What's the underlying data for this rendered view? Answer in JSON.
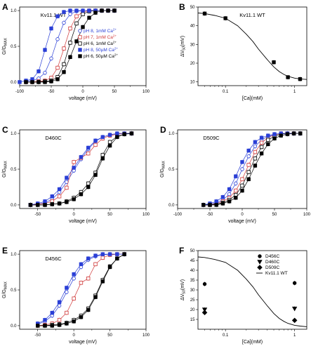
{
  "chart_data": [
    {
      "id": "A",
      "type": "scatter",
      "title": "Kv11.1 WT",
      "xlabel": "voltage (mV)",
      "ylabel": "G/G",
      "ylabel_sub": "MAX",
      "xlim": [
        -100,
        100
      ],
      "ylim": [
        -0.05,
        1.05
      ],
      "xticks": [
        -100,
        -50,
        0,
        50,
        100
      ],
      "yticks": [
        0.0,
        0.5,
        1.0
      ],
      "legend_position": "right",
      "series": [
        {
          "name": "pH 8, 1mM Ca",
          "sup": "2+",
          "color": "#2a3fd6",
          "marker": "circle",
          "filled": false,
          "x": [
            -90,
            -80,
            -70,
            -60,
            -50,
            -40,
            -30,
            -20,
            -10,
            0,
            10,
            20,
            30,
            40,
            50
          ],
          "y": [
            0.01,
            0.02,
            0.05,
            0.13,
            0.33,
            0.6,
            0.83,
            0.95,
            0.99,
            1.0,
            1.0,
            1.0,
            1.0,
            1.0,
            1.0
          ]
        },
        {
          "name": "pH 7, 1mM Ca",
          "sup": "2+",
          "color": "#d03a3a",
          "marker": "square",
          "filled": false,
          "x": [
            -90,
            -80,
            -70,
            -60,
            -50,
            -40,
            -30,
            -20,
            -10,
            0,
            10,
            20,
            30,
            40,
            50
          ],
          "y": [
            0.0,
            0.0,
            0.01,
            0.02,
            0.06,
            0.2,
            0.47,
            0.75,
            0.92,
            0.98,
            1.0,
            1.0,
            1.0,
            1.0,
            1.0
          ]
        },
        {
          "name": "pH 6, 1mM Ca",
          "sup": "2+",
          "color": "#000000",
          "marker": "square",
          "filled": false,
          "x": [
            -90,
            -80,
            -70,
            -60,
            -50,
            -40,
            -30,
            -20,
            -10,
            0,
            10,
            20,
            30,
            40,
            50
          ],
          "y": [
            0.0,
            0.0,
            0.0,
            0.01,
            0.02,
            0.07,
            0.25,
            0.55,
            0.82,
            0.95,
            0.99,
            1.0,
            1.0,
            1.0,
            1.0
          ]
        },
        {
          "name": "pH 8, 50µM Ca",
          "sup": "2+",
          "color": "#2a3fd6",
          "marker": "square",
          "filled": true,
          "x": [
            -100,
            -90,
            -80,
            -70,
            -60,
            -50,
            -40,
            -30,
            -20,
            -10,
            0,
            10,
            20,
            30,
            40,
            50
          ],
          "y": [
            0.0,
            0.02,
            0.04,
            0.15,
            0.45,
            0.75,
            0.92,
            0.98,
            1.0,
            1.0,
            1.0,
            1.0,
            1.0,
            1.0,
            1.0,
            1.0
          ]
        },
        {
          "name": "pH 6, 50µM Ca",
          "sup": "2+",
          "color": "#000000",
          "marker": "square",
          "filled": true,
          "x": [
            -90,
            -80,
            -70,
            -60,
            -50,
            -40,
            -30,
            -20,
            -10,
            0,
            10,
            20,
            30,
            40,
            50
          ],
          "y": [
            0.0,
            0.0,
            0.0,
            0.0,
            0.01,
            0.04,
            0.14,
            0.35,
            0.57,
            0.77,
            0.9,
            0.97,
            1.0,
            1.0,
            1.0
          ]
        }
      ]
    },
    {
      "id": "B",
      "type": "scatter",
      "title": "Kv11.1 WT",
      "xlabel": "[Ca](mM)",
      "ylabel": "ΔV",
      "ylabel_sub": "50",
      "ylabel_unit": "(mV)",
      "xscale": "log",
      "xlim": [
        0.04,
        1.5
      ],
      "ylim": [
        8,
        50
      ],
      "xticks": [
        0.1,
        1
      ],
      "xticklabels": [
        "0.1",
        "1"
      ],
      "yticks": [
        10,
        20,
        30,
        40,
        50
      ],
      "series": [
        {
          "name": "data",
          "color": "#000000",
          "marker": "square",
          "filled": true,
          "x": [
            0.05,
            0.1,
            0.5,
            0.8,
            1.2
          ],
          "y": [
            46.5,
            44,
            20.5,
            12.5,
            11.5
          ]
        },
        {
          "name": "fit",
          "color": "#000000",
          "marker": "line",
          "x": [
            0.04,
            0.05,
            0.07,
            0.1,
            0.15,
            0.2,
            0.25,
            0.3,
            0.4,
            0.5,
            0.6,
            0.7,
            0.8,
            1.0,
            1.2,
            1.5
          ],
          "y": [
            46.8,
            46.5,
            45.5,
            44.0,
            40.0,
            35.5,
            31.5,
            27.5,
            22.0,
            18.0,
            15.5,
            14.0,
            13.0,
            12.0,
            11.6,
            11.3
          ]
        }
      ]
    },
    {
      "id": "C",
      "type": "scatter",
      "title": "D460C",
      "xlabel": "voltage (mV)",
      "ylabel": "G/G",
      "ylabel_sub": "MAX",
      "xlim": [
        -75,
        100
      ],
      "ylim": [
        -0.05,
        1.05
      ],
      "xticks": [
        -50,
        0,
        50,
        100
      ],
      "yticks": [
        0.0,
        0.5,
        1.0
      ],
      "series": [
        {
          "name": "pH 8, 1mM",
          "color": "#2a3fd6",
          "marker": "circle",
          "filled": false,
          "x": [
            -60,
            -50,
            -40,
            -30,
            -20,
            -10,
            0,
            10,
            20,
            30,
            40,
            50,
            60,
            70,
            80
          ],
          "y": [
            0.0,
            0.01,
            0.03,
            0.08,
            0.18,
            0.32,
            0.48,
            0.64,
            0.78,
            0.89,
            0.95,
            0.98,
            1.0,
            1.0,
            1.0
          ]
        },
        {
          "name": "pH 7, 1mM",
          "color": "#d03a3a",
          "marker": "square",
          "filled": false,
          "x": [
            -60,
            -50,
            -40,
            -30,
            -20,
            -10,
            0,
            10,
            20,
            30,
            40,
            50,
            60,
            70,
            80
          ],
          "y": [
            0.0,
            0.01,
            0.02,
            0.05,
            0.12,
            0.24,
            0.6,
            0.66,
            0.72,
            0.84,
            0.93,
            0.97,
            0.99,
            1.0,
            1.0
          ]
        },
        {
          "name": "pH 6, 1mM",
          "color": "#000000",
          "marker": "square",
          "filled": false,
          "x": [
            -60,
            -50,
            -40,
            -30,
            -20,
            -10,
            0,
            10,
            20,
            30,
            40,
            50,
            60,
            70,
            80
          ],
          "y": [
            0.0,
            0.0,
            0.0,
            0.01,
            0.02,
            0.05,
            0.1,
            0.18,
            0.3,
            0.45,
            0.7,
            0.88,
            0.96,
            0.99,
            1.0
          ]
        },
        {
          "name": "pH 8, 50µM",
          "color": "#2a3fd6",
          "marker": "square",
          "filled": true,
          "x": [
            -60,
            -50,
            -40,
            -30,
            -20,
            -10,
            0,
            10,
            20,
            30,
            40,
            50,
            60,
            70,
            80
          ],
          "y": [
            0.0,
            0.02,
            0.05,
            0.12,
            0.22,
            0.38,
            0.52,
            0.67,
            0.8,
            0.9,
            0.95,
            0.98,
            1.0,
            1.0,
            1.0
          ]
        },
        {
          "name": "pH 6, 50µM",
          "color": "#000000",
          "marker": "square",
          "filled": true,
          "x": [
            -60,
            -50,
            -40,
            -30,
            -20,
            -10,
            0,
            10,
            20,
            30,
            40,
            50,
            60,
            70,
            80
          ],
          "y": [
            0.0,
            0.0,
            0.0,
            0.01,
            0.02,
            0.04,
            0.08,
            0.15,
            0.25,
            0.42,
            0.65,
            0.83,
            0.95,
            0.99,
            1.0
          ]
        }
      ]
    },
    {
      "id": "D",
      "type": "scatter",
      "title": "D509C",
      "xlabel": "voltage (mV)",
      "ylabel": "G/G",
      "ylabel_sub": "MAX",
      "xlim": [
        -100,
        100
      ],
      "ylim": [
        -0.05,
        1.05
      ],
      "xticks": [
        -100,
        -50,
        0,
        50,
        100
      ],
      "yticks": [
        0.0,
        0.5,
        1.0
      ],
      "series": [
        {
          "name": "pH 8, 1mM",
          "color": "#2a3fd6",
          "marker": "circle",
          "filled": false,
          "x": [
            -60,
            -50,
            -40,
            -30,
            -20,
            -10,
            0,
            10,
            20,
            30,
            40,
            50,
            60,
            70,
            80,
            90
          ],
          "y": [
            0.0,
            0.01,
            0.03,
            0.07,
            0.15,
            0.3,
            0.5,
            0.68,
            0.82,
            0.91,
            0.96,
            0.98,
            1.0,
            1.0,
            1.0,
            1.0
          ]
        },
        {
          "name": "pH 7, 1mM",
          "color": "#d03a3a",
          "marker": "square",
          "filled": false,
          "x": [
            -60,
            -50,
            -40,
            -30,
            -20,
            -10,
            0,
            10,
            20,
            30,
            40,
            50,
            60,
            70,
            80,
            90
          ],
          "y": [
            0.0,
            0.0,
            0.02,
            0.05,
            0.1,
            0.2,
            0.36,
            0.56,
            0.74,
            0.87,
            0.94,
            0.98,
            1.0,
            1.0,
            1.0,
            1.0
          ]
        },
        {
          "name": "pH 6, 1mM",
          "color": "#000000",
          "marker": "square",
          "filled": false,
          "x": [
            -60,
            -50,
            -40,
            -30,
            -20,
            -10,
            0,
            10,
            20,
            30,
            40,
            50,
            60,
            70,
            80,
            90
          ],
          "y": [
            0.0,
            0.0,
            0.01,
            0.03,
            0.07,
            0.14,
            0.27,
            0.46,
            0.65,
            0.81,
            0.91,
            0.96,
            0.99,
            1.0,
            1.0,
            1.0
          ]
        },
        {
          "name": "pH 8, 50µM",
          "color": "#2a3fd6",
          "marker": "square",
          "filled": true,
          "x": [
            -60,
            -50,
            -40,
            -30,
            -20,
            -10,
            0,
            10,
            20,
            30,
            40,
            50,
            60,
            70,
            80,
            90
          ],
          "y": [
            0.0,
            0.02,
            0.05,
            0.11,
            0.22,
            0.4,
            0.6,
            0.76,
            0.88,
            0.94,
            0.97,
            0.99,
            1.0,
            1.0,
            1.0,
            1.0
          ]
        },
        {
          "name": "pH 6, 50µM",
          "color": "#000000",
          "marker": "square",
          "filled": true,
          "x": [
            -60,
            -50,
            -40,
            -30,
            -20,
            -10,
            0,
            10,
            20,
            30,
            40,
            50,
            60,
            70,
            80,
            90
          ],
          "y": [
            0.0,
            0.0,
            0.0,
            0.02,
            0.05,
            0.1,
            0.2,
            0.36,
            0.55,
            0.72,
            0.85,
            0.93,
            0.97,
            0.99,
            1.0,
            1.0
          ]
        }
      ]
    },
    {
      "id": "E",
      "type": "scatter",
      "title": "D456C",
      "xlabel": "voltage (mV)",
      "ylabel": "G/G",
      "ylabel_sub": "MAX",
      "xlim": [
        -75,
        100
      ],
      "ylim": [
        -0.05,
        1.05
      ],
      "xticks": [
        -50,
        0,
        50,
        100
      ],
      "yticks": [
        0.0,
        0.5,
        1.0
      ],
      "series": [
        {
          "name": "pH 8, 1mM",
          "color": "#2a3fd6",
          "marker": "circle",
          "filled": false,
          "x": [
            -50,
            -40,
            -30,
            -20,
            -10,
            0,
            10,
            20,
            30,
            40,
            50,
            60,
            70
          ],
          "y": [
            0.02,
            0.06,
            0.14,
            0.28,
            0.47,
            0.66,
            0.82,
            0.92,
            0.97,
            0.99,
            1.0,
            1.0,
            1.0
          ]
        },
        {
          "name": "pH 7, 1mM",
          "color": "#d03a3a",
          "marker": "square",
          "filled": false,
          "x": [
            -50,
            -40,
            -30,
            -20,
            -10,
            0,
            10,
            20,
            30,
            40,
            50,
            60,
            70
          ],
          "y": [
            0.0,
            0.01,
            0.03,
            0.08,
            0.18,
            0.38,
            0.6,
            0.66,
            0.86,
            0.95,
            0.99,
            1.0,
            1.0
          ]
        },
        {
          "name": "pH 6, 1mM",
          "color": "#000000",
          "marker": "square",
          "filled": false,
          "x": [
            -50,
            -40,
            -30,
            -20,
            -10,
            0,
            10,
            20,
            30,
            40,
            50,
            60,
            70
          ],
          "y": [
            0.0,
            0.0,
            0.01,
            0.02,
            0.04,
            0.08,
            0.14,
            0.24,
            0.42,
            0.64,
            0.83,
            0.94,
            1.0
          ]
        },
        {
          "name": "pH 8, 50µM",
          "color": "#2a3fd6",
          "marker": "square",
          "filled": true,
          "x": [
            -50,
            -40,
            -30,
            -20,
            -10,
            0,
            10,
            20,
            30,
            40,
            50,
            60,
            70
          ],
          "y": [
            0.03,
            0.08,
            0.18,
            0.33,
            0.53,
            0.72,
            0.86,
            0.94,
            0.98,
            1.0,
            1.0,
            1.0,
            1.0
          ]
        },
        {
          "name": "pH 6, 50µM",
          "color": "#000000",
          "marker": "square",
          "filled": true,
          "x": [
            -50,
            -40,
            -30,
            -20,
            -10,
            0,
            10,
            20,
            30,
            40,
            50,
            60,
            70
          ],
          "y": [
            0.0,
            0.0,
            0.0,
            0.01,
            0.03,
            0.06,
            0.12,
            0.22,
            0.4,
            0.62,
            0.82,
            0.94,
            1.0
          ]
        }
      ]
    },
    {
      "id": "F",
      "type": "scatter",
      "title": "",
      "xlabel": "[Ca](mM)",
      "ylabel": "ΔV",
      "ylabel_sub": "50",
      "ylabel_unit": "(mV)",
      "xscale": "log",
      "xlim": [
        0.04,
        1.5
      ],
      "ylim": [
        10,
        50
      ],
      "xticks": [
        0.1,
        1
      ],
      "xticklabels": [
        "0.1",
        "1"
      ],
      "yticks": [
        15,
        20,
        25,
        30,
        35,
        40,
        45,
        50
      ],
      "legend_position": "top-right",
      "series": [
        {
          "name": "D456C",
          "color": "#000000",
          "marker": "circle",
          "filled": true,
          "x": [
            0.05,
            1.0
          ],
          "y": [
            33,
            33.5
          ]
        },
        {
          "name": "D460C",
          "color": "#000000",
          "marker": "triangle-down",
          "filled": true,
          "x": [
            0.05,
            1.0
          ],
          "y": [
            20,
            20.5
          ]
        },
        {
          "name": "D509C",
          "color": "#000000",
          "marker": "diamond",
          "filled": true,
          "x": [
            0.05,
            1.0
          ],
          "y": [
            18.5,
            14.5
          ]
        },
        {
          "name": "Kv11.1 WT",
          "color": "#000000",
          "marker": "line",
          "x": [
            0.04,
            0.05,
            0.07,
            0.1,
            0.15,
            0.2,
            0.25,
            0.3,
            0.4,
            0.5,
            0.6,
            0.7,
            0.8,
            1.0,
            1.2,
            1.5
          ],
          "y": [
            46.8,
            46.5,
            45.5,
            44.0,
            40.0,
            35.5,
            31.5,
            27.5,
            22.0,
            18.0,
            15.5,
            14.0,
            13.0,
            12.0,
            11.6,
            11.3
          ]
        }
      ]
    }
  ]
}
